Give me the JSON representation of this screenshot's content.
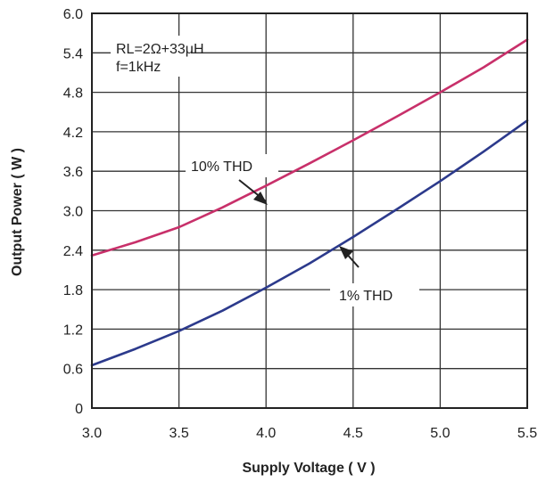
{
  "chart_data": {
    "type": "line",
    "xlabel": "Supply Voltage ( V )",
    "ylabel": "Output Power ( W )",
    "xlim": [
      3.0,
      5.5
    ],
    "ylim": [
      0,
      6.0
    ],
    "x_ticks": [
      "3.0",
      "3.5",
      "4.0",
      "4.5",
      "5.0",
      "5.5"
    ],
    "y_ticks": [
      "0",
      "0.6",
      "1.2",
      "1.8",
      "2.4",
      "3.0",
      "3.6",
      "4.2",
      "4.8",
      "5.4",
      "6.0"
    ],
    "grid": true,
    "condition_lines": [
      "RL=2Ω+33μH",
      "f=1kHz"
    ],
    "annotations": [
      {
        "text": "10% THD",
        "series": "10% THD"
      },
      {
        "text": "1% THD",
        "series": "1% THD"
      }
    ],
    "series": [
      {
        "name": "10% THD",
        "color": "#c8306a",
        "x": [
          3.0,
          3.25,
          3.5,
          3.75,
          4.0,
          4.25,
          4.5,
          4.75,
          5.0,
          5.25,
          5.5
        ],
        "y": [
          2.32,
          2.52,
          2.75,
          3.05,
          3.38,
          3.72,
          4.07,
          4.43,
          4.8,
          5.18,
          5.6
        ]
      },
      {
        "name": "1% THD",
        "color": "#2c3a8c",
        "x": [
          3.0,
          3.25,
          3.5,
          3.75,
          4.0,
          4.25,
          4.5,
          4.75,
          5.0,
          5.25,
          5.5
        ],
        "y": [
          0.65,
          0.9,
          1.17,
          1.48,
          1.83,
          2.2,
          2.6,
          3.02,
          3.45,
          3.9,
          4.37
        ]
      }
    ]
  }
}
